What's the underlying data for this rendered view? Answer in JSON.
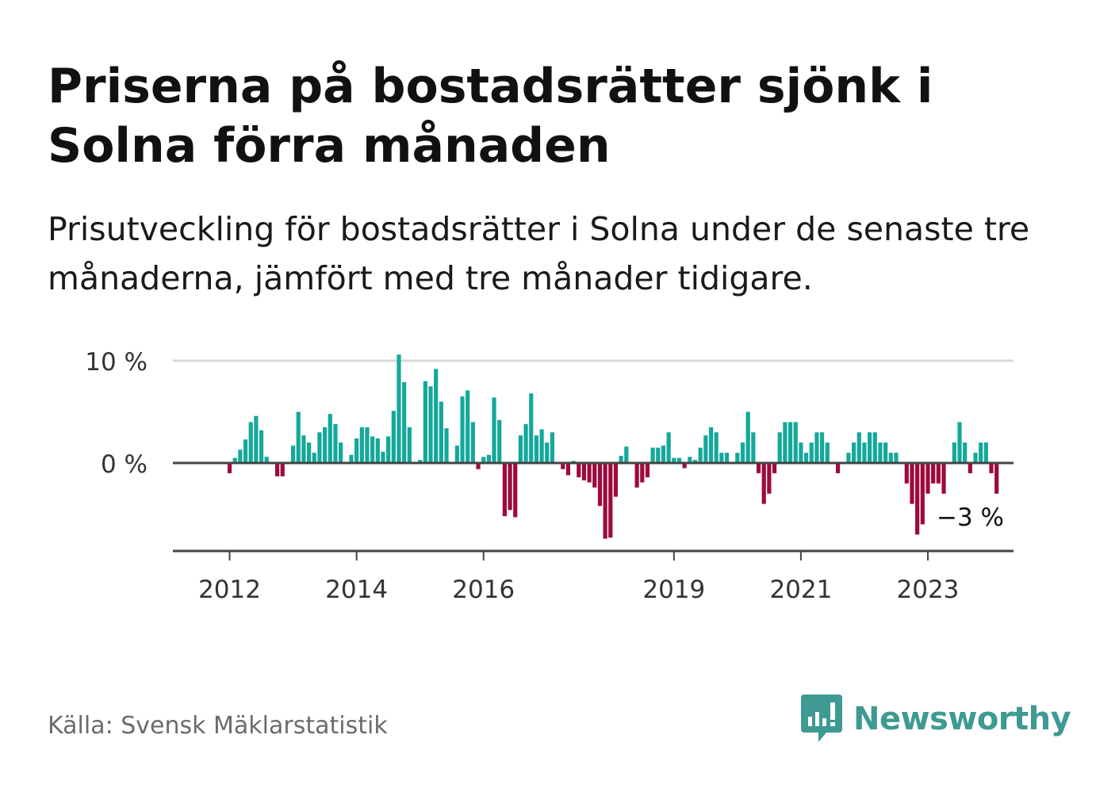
{
  "title": "Priserna på bostadsrätter sjönk i Solna förra månaden",
  "subtitle": "Prisutveckling för bostadsrätter i Solna under de senaste tre månaderna, jämfört med tre månader tidigare.",
  "source": "Källa: Svensk Mäklarstatistik",
  "brand": {
    "name": "Newsworthy",
    "icon": "newsworthy-logo-icon",
    "color": "#3e9a92"
  },
  "colors": {
    "positive": "#14a89a",
    "negative": "#9c0a3e",
    "axis": "#444444",
    "grid": "#d9d9d9"
  },
  "chart_data": {
    "type": "bar",
    "title": "Priserna på bostadsrätter sjönk i Solna förra månaden",
    "ylabel": "",
    "xlabel": "",
    "ylim": [
      -8.5,
      10
    ],
    "yticks": [
      0,
      10
    ],
    "ytick_labels": [
      "0 %",
      "10 %"
    ],
    "grid": true,
    "start": "2011-01",
    "x_ticks": [
      {
        "label": "2012",
        "index": 12
      },
      {
        "label": "2014",
        "index": 36
      },
      {
        "label": "2016",
        "index": 60
      },
      {
        "label": "2019",
        "index": 96
      },
      {
        "label": "2021",
        "index": 120
      },
      {
        "label": "2023",
        "index": 144
      }
    ],
    "values": [
      0,
      0,
      0,
      0,
      0,
      0,
      0,
      0,
      0,
      0,
      0,
      0,
      -1.0,
      0.5,
      1.3,
      2.3,
      4.0,
      4.6,
      3.2,
      0.6,
      0,
      -1.3,
      -1.3,
      0,
      1.7,
      5.0,
      2.7,
      2.0,
      1.0,
      3.0,
      3.5,
      4.8,
      3.8,
      2.0,
      0,
      0.8,
      2.4,
      3.5,
      3.5,
      2.6,
      2.4,
      1.1,
      2.6,
      5.1,
      10.6,
      7.9,
      3.5,
      0,
      0.3,
      8.0,
      7.5,
      9.2,
      6.0,
      3.4,
      0,
      1.7,
      6.5,
      7.1,
      4.0,
      -0.6,
      0.6,
      0.8,
      6.4,
      4.2,
      -5.2,
      -4.6,
      -5.3,
      2.7,
      3.8,
      6.8,
      2.7,
      3.3,
      2.0,
      3.0,
      0,
      -0.6,
      -1.2,
      0.2,
      -1.4,
      -1.7,
      -1.9,
      -2.4,
      -4.2,
      -7.4,
      -7.3,
      -3.3,
      0.7,
      1.6,
      0,
      -2.4,
      -1.9,
      -1.4,
      1.5,
      1.5,
      1.7,
      3.0,
      0.5,
      0.5,
      -0.5,
      0.6,
      0.3,
      1.5,
      2.7,
      3.5,
      3.0,
      1.0,
      1.0,
      0,
      1.0,
      2.0,
      5.0,
      3.0,
      -1.0,
      -4.0,
      -3.0,
      -1.0,
      3.0,
      4.0,
      4.0,
      4.0,
      2.0,
      1.0,
      2.0,
      3.0,
      3.0,
      2.0,
      0,
      -1.0,
      0,
      1.0,
      2.0,
      3.0,
      2.0,
      3.0,
      3.0,
      2.0,
      2.0,
      1.0,
      1.0,
      0,
      -2.0,
      -4.0,
      -7.0,
      -6.0,
      -3.0,
      -2.0,
      -2.0,
      -3.0,
      0,
      2.0,
      4.0,
      2.0,
      -1.0,
      1.0,
      2.0,
      2.0,
      -1.0,
      -3.0
    ],
    "last_value_label": "−3 %"
  }
}
